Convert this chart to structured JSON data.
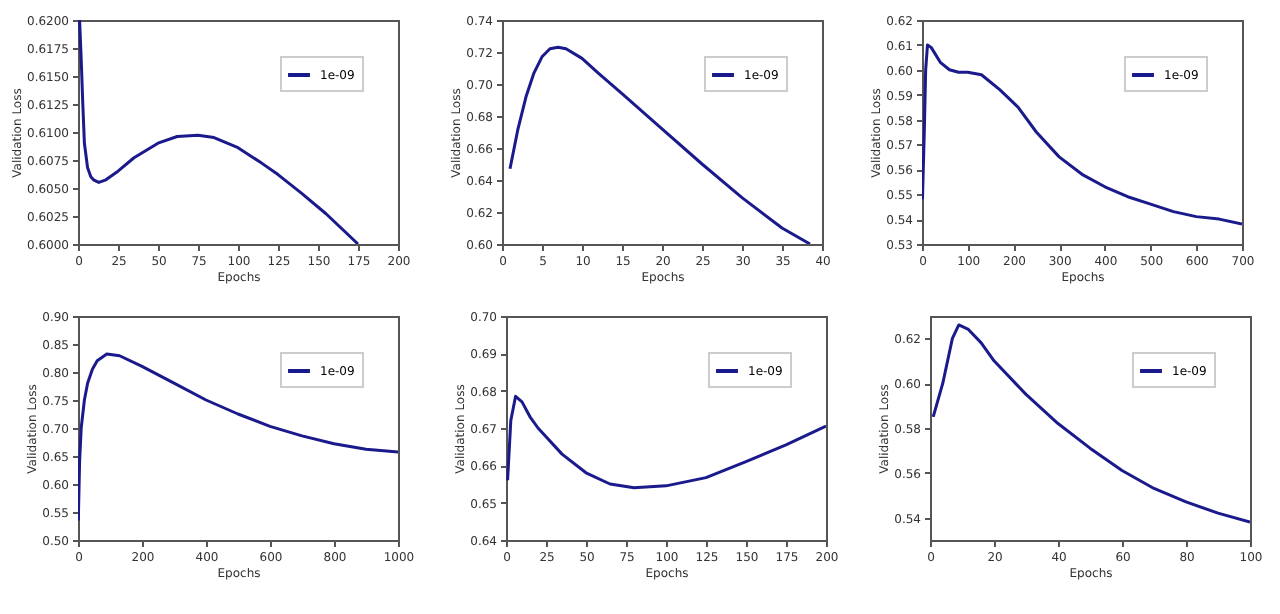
{
  "chart_data": [
    {
      "type": "line",
      "xlabel": "Epochs",
      "ylabel": "Validation Loss",
      "legend": "top right",
      "series": [
        {
          "name": "1e-09",
          "color": "#1a1a8c",
          "x": [
            1,
            2,
            3,
            4,
            6,
            8,
            10,
            13,
            17,
            25,
            35,
            50,
            62,
            75,
            85,
            100,
            115,
            125,
            140,
            155,
            175
          ],
          "values": [
            0.62,
            0.6165,
            0.6125,
            0.609,
            0.6068,
            0.606,
            0.6057,
            0.6055,
            0.6057,
            0.6065,
            0.6077,
            0.609,
            0.6096,
            0.6097,
            0.6095,
            0.6086,
            0.6072,
            0.6062,
            0.6045,
            0.6027,
            0.6
          ]
        }
      ],
      "xlim": [
        0,
        200
      ],
      "xticks": [
        0,
        25,
        50,
        75,
        100,
        125,
        150,
        175,
        200
      ],
      "ylim": [
        0.6,
        0.62
      ],
      "yticks": [
        {
          "value": 0.6,
          "label": "0.6000"
        },
        0.6025,
        {
          "value": 0.605,
          "label": "0.6050"
        },
        0.6075,
        {
          "value": 0.61,
          "label": "0.6100"
        },
        0.6125,
        {
          "value": 0.615,
          "label": "0.6150"
        },
        0.6175,
        {
          "value": 0.62,
          "label": "0.6200"
        }
      ]
    },
    {
      "type": "line",
      "xlabel": "Epochs",
      "ylabel": "Validation Loss",
      "legend": "top right",
      "series": [
        {
          "name": "1e-09",
          "color": "#1a1a8c",
          "x": [
            1,
            2,
            3,
            4,
            5,
            6,
            7,
            8,
            10,
            12,
            15,
            20,
            25,
            30,
            35,
            38.5
          ],
          "values": [
            0.647,
            0.672,
            0.692,
            0.707,
            0.717,
            0.722,
            0.723,
            0.722,
            0.716,
            0.707,
            0.694,
            0.672,
            0.65,
            0.629,
            0.61,
            0.6
          ]
        }
      ],
      "xlim": [
        0,
        40
      ],
      "xticks": [
        0,
        5,
        10,
        15,
        20,
        25,
        30,
        35,
        40
      ],
      "ylim": [
        0.6,
        0.74
      ],
      "yticks": [
        {
          "value": 0.6,
          "label": "0.60"
        },
        0.62,
        0.64,
        0.66,
        0.68,
        {
          "value": 0.7,
          "label": "0.70"
        },
        0.72,
        0.74
      ]
    },
    {
      "type": "line",
      "xlabel": "Epochs",
      "ylabel": "Validation Loss",
      "legend": "top right",
      "series": [
        {
          "name": "1e-09",
          "color": "#1a1a8c",
          "x": [
            1,
            5,
            8,
            12,
            20,
            40,
            60,
            80,
            100,
            130,
            170,
            210,
            250,
            300,
            350,
            400,
            450,
            500,
            550,
            600,
            650,
            700
          ],
          "values": [
            0.548,
            0.575,
            0.6,
            0.61,
            0.609,
            0.603,
            0.6,
            0.599,
            0.599,
            0.598,
            0.592,
            0.585,
            0.575,
            0.565,
            0.558,
            0.553,
            0.549,
            0.546,
            0.543,
            0.541,
            0.54,
            0.538
          ]
        }
      ],
      "xlim": [
        0,
        700
      ],
      "xticks": [
        0,
        100,
        200,
        300,
        400,
        500,
        600,
        700
      ],
      "ylim": [
        0.53,
        0.62
      ],
      "yticks": [
        0.53,
        0.54,
        0.55,
        0.56,
        0.57,
        0.58,
        0.59,
        {
          "value": 0.6,
          "label": "0.60"
        },
        0.61,
        0.62
      ]
    },
    {
      "type": "line",
      "xlabel": "Epochs",
      "ylabel": "Validation Loss",
      "legend": "top right",
      "series": [
        {
          "name": "1e-09",
          "color": "#1a1a8c",
          "x": [
            1,
            5,
            10,
            20,
            30,
            45,
            60,
            90,
            130,
            200,
            300,
            400,
            500,
            600,
            700,
            800,
            900,
            1000
          ],
          "values": [
            0.535,
            0.64,
            0.7,
            0.75,
            0.78,
            0.805,
            0.82,
            0.832,
            0.829,
            0.81,
            0.78,
            0.75,
            0.725,
            0.703,
            0.686,
            0.672,
            0.662,
            0.657
          ]
        }
      ],
      "xlim": [
        0,
        1000
      ],
      "xticks": [
        0,
        200,
        400,
        600,
        800,
        1000
      ],
      "ylim": [
        0.5,
        0.9
      ],
      "yticks": [
        {
          "value": 0.5,
          "label": "0.50"
        },
        0.55,
        {
          "value": 0.6,
          "label": "0.60"
        },
        0.65,
        {
          "value": 0.7,
          "label": "0.70"
        },
        0.75,
        {
          "value": 0.8,
          "label": "0.80"
        },
        0.85,
        {
          "value": 0.9,
          "label": "0.90"
        }
      ]
    },
    {
      "type": "line",
      "xlabel": "Epochs",
      "ylabel": "Validation Loss",
      "legend": "top right",
      "series": [
        {
          "name": "1e-09",
          "color": "#1a1a8c",
          "x": [
            1,
            3,
            6,
            10,
            15,
            20,
            35,
            50,
            65,
            80,
            100,
            125,
            150,
            175,
            200
          ],
          "values": [
            0.656,
            0.672,
            0.6785,
            0.677,
            0.673,
            0.67,
            0.663,
            0.658,
            0.655,
            0.654,
            0.6545,
            0.6567,
            0.661,
            0.6655,
            0.6705
          ]
        }
      ],
      "xlim": [
        0,
        200
      ],
      "xticks": [
        0,
        25,
        50,
        75,
        100,
        125,
        150,
        175,
        200
      ],
      "ylim": [
        0.64,
        0.7
      ],
      "yticks": [
        0.64,
        0.65,
        0.66,
        0.67,
        0.68,
        0.69,
        {
          "value": 0.7,
          "label": "0.70"
        }
      ]
    },
    {
      "type": "line",
      "xlabel": "Epochs",
      "ylabel": "Validation Loss",
      "legend": "top right",
      "series": [
        {
          "name": "1e-09",
          "color": "#1a1a8c",
          "x": [
            1,
            4,
            7,
            9,
            12,
            16,
            20,
            30,
            40,
            50,
            60,
            70,
            80,
            90,
            100
          ],
          "values": [
            0.585,
            0.6,
            0.62,
            0.626,
            0.624,
            0.618,
            0.61,
            0.595,
            0.582,
            0.571,
            0.561,
            0.553,
            0.547,
            0.542,
            0.538
          ]
        }
      ],
      "xlim": [
        0,
        100
      ],
      "xticks": [
        0,
        20,
        40,
        60,
        80,
        100
      ],
      "ylim": [
        0.53,
        0.63
      ],
      "yticks": [
        0.54,
        0.56,
        0.58,
        {
          "value": 0.6,
          "label": "0.60"
        },
        0.62
      ]
    }
  ]
}
